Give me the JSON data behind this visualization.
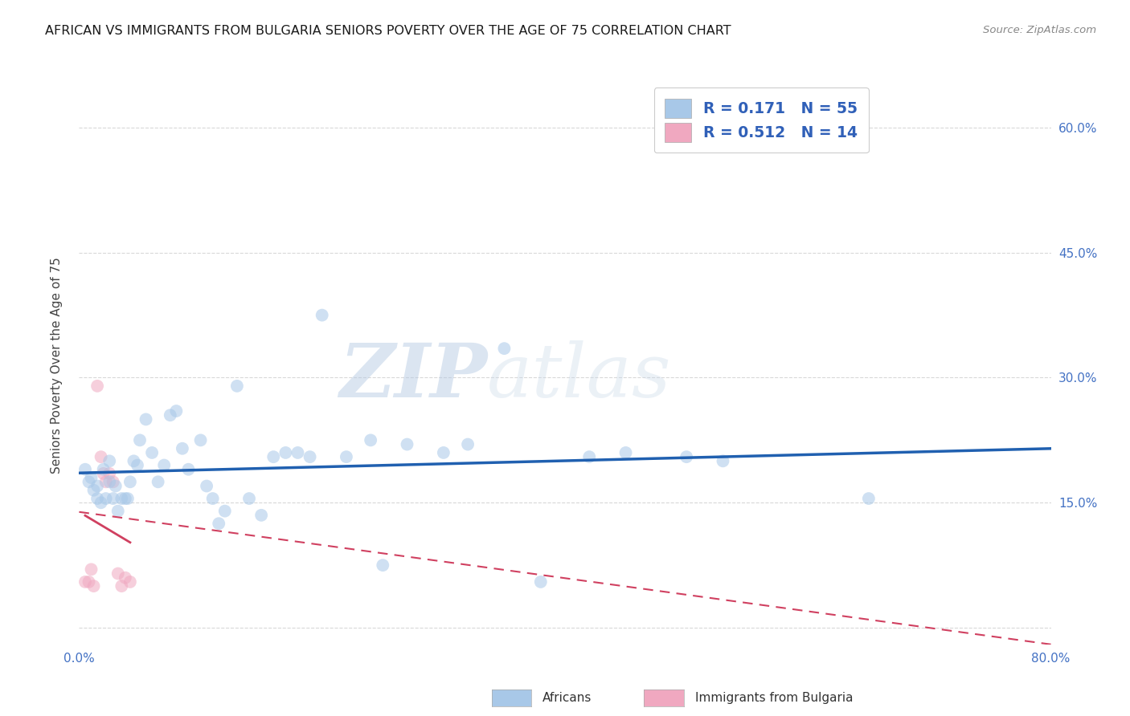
{
  "title": "AFRICAN VS IMMIGRANTS FROM BULGARIA SENIORS POVERTY OVER THE AGE OF 75 CORRELATION CHART",
  "source": "Source: ZipAtlas.com",
  "ylabel": "Seniors Poverty Over the Age of 75",
  "xlim": [
    0.0,
    0.8
  ],
  "ylim": [
    -0.02,
    0.65
  ],
  "xticks": [
    0.0,
    0.1,
    0.2,
    0.3,
    0.4,
    0.5,
    0.6,
    0.7,
    0.8
  ],
  "ytick_positions": [
    0.0,
    0.15,
    0.3,
    0.45,
    0.6
  ],
  "african_x": [
    0.005,
    0.008,
    0.01,
    0.012,
    0.015,
    0.015,
    0.018,
    0.02,
    0.022,
    0.025,
    0.025,
    0.028,
    0.03,
    0.032,
    0.035,
    0.038,
    0.04,
    0.042,
    0.045,
    0.048,
    0.05,
    0.055,
    0.06,
    0.065,
    0.07,
    0.075,
    0.08,
    0.085,
    0.09,
    0.1,
    0.105,
    0.11,
    0.115,
    0.12,
    0.13,
    0.14,
    0.15,
    0.16,
    0.17,
    0.18,
    0.19,
    0.2,
    0.22,
    0.24,
    0.25,
    0.27,
    0.3,
    0.32,
    0.35,
    0.38,
    0.42,
    0.45,
    0.5,
    0.53,
    0.65
  ],
  "african_y": [
    0.19,
    0.175,
    0.18,
    0.165,
    0.155,
    0.17,
    0.15,
    0.19,
    0.155,
    0.2,
    0.175,
    0.155,
    0.17,
    0.14,
    0.155,
    0.155,
    0.155,
    0.175,
    0.2,
    0.195,
    0.225,
    0.25,
    0.21,
    0.175,
    0.195,
    0.255,
    0.26,
    0.215,
    0.19,
    0.225,
    0.17,
    0.155,
    0.125,
    0.14,
    0.29,
    0.155,
    0.135,
    0.205,
    0.21,
    0.21,
    0.205,
    0.375,
    0.205,
    0.225,
    0.075,
    0.22,
    0.21,
    0.22,
    0.335,
    0.055,
    0.205,
    0.21,
    0.205,
    0.2,
    0.155
  ],
  "bulgarian_x": [
    0.005,
    0.008,
    0.01,
    0.012,
    0.015,
    0.018,
    0.02,
    0.022,
    0.025,
    0.028,
    0.032,
    0.035,
    0.038,
    0.042
  ],
  "bulgarian_y": [
    0.055,
    0.055,
    0.07,
    0.05,
    0.29,
    0.205,
    0.185,
    0.175,
    0.185,
    0.175,
    0.065,
    0.05,
    0.06,
    0.055
  ],
  "african_R": 0.171,
  "african_N": 55,
  "bulgarian_R": 0.512,
  "bulgarian_N": 14,
  "african_color": "#a8c8e8",
  "african_line_color": "#2060b0",
  "bulgarian_color": "#f0a8c0",
  "bulgarian_line_color": "#d04060",
  "dot_size": 130,
  "dot_alpha": 0.55,
  "watermark_zip": "ZIP",
  "watermark_atlas": "atlas",
  "background_color": "#ffffff",
  "grid_color": "#d8d8d8",
  "title_fontsize": 11.5,
  "tick_label_color": "#4472c4",
  "ylabel_color": "#444444",
  "source_color": "#888888"
}
